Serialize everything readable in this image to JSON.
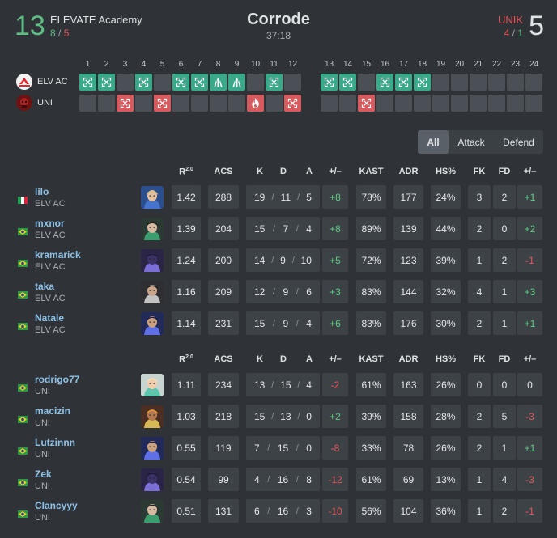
{
  "match": {
    "map": "Corrode",
    "duration": "37:18",
    "left": {
      "score": "13",
      "name": "ELEVATE Academy",
      "atk": "8",
      "def": "5",
      "abbr": "ELV AC"
    },
    "right": {
      "score": "5",
      "name": "UNIK",
      "atk": "4",
      "def": "1",
      "abbr": "UNI"
    }
  },
  "rounds": {
    "numbers": [
      "1",
      "2",
      "3",
      "4",
      "5",
      "6",
      "7",
      "8",
      "9",
      "10",
      "11",
      "12",
      "13",
      "14",
      "15",
      "16",
      "17",
      "18",
      "19",
      "20",
      "21",
      "22",
      "23",
      "24"
    ],
    "team1": [
      "elim",
      "elim",
      "",
      "elim",
      "",
      "elim",
      "elim",
      "defuse",
      "defuse",
      "",
      "elim",
      "",
      "elim",
      "elim",
      "",
      "elim",
      "elim",
      "elim",
      "",
      "",
      "",
      "",
      "",
      ""
    ],
    "team2": [
      "",
      "",
      "elim",
      "",
      "elim",
      "",
      "",
      "",
      "",
      "boom",
      "",
      "elim",
      "",
      "",
      "elim",
      "",
      "",
      "",
      "",
      "",
      "",
      "",
      "",
      ""
    ],
    "team1_color": "#3aa88b",
    "team2_color": "#d65a5e"
  },
  "filter": {
    "options": [
      "All",
      "Attack",
      "Defend"
    ],
    "active": "All"
  },
  "columns": {
    "rating": "R",
    "rating_sup": "2.0",
    "acs": "ACS",
    "k": "K",
    "d": "D",
    "a": "A",
    "pm": "+/–",
    "kast": "KAST",
    "adr": "ADR",
    "hs": "HS%",
    "fk": "FK",
    "fd": "FD",
    "fpm": "+/–"
  },
  "tables": [
    {
      "players": [
        {
          "name": "lilo",
          "team": "ELV AC",
          "flag": "it",
          "agent": "sova",
          "rating": "1.42",
          "acs": "288",
          "k": "19",
          "d": "11",
          "a": "5",
          "pm": "+8",
          "kast": "78%",
          "adr": "177",
          "hs": "24%",
          "fk": "3",
          "fd": "2",
          "fpm": "+1"
        },
        {
          "name": "mxnor",
          "team": "ELV AC",
          "flag": "br",
          "agent": "viper",
          "rating": "1.39",
          "acs": "204",
          "k": "15",
          "d": "7",
          "a": "4",
          "pm": "+8",
          "kast": "89%",
          "adr": "139",
          "hs": "44%",
          "fk": "2",
          "fd": "0",
          "fpm": "+2"
        },
        {
          "name": "kramarick",
          "team": "ELV AC",
          "flag": "br",
          "agent": "omen",
          "rating": "1.24",
          "acs": "200",
          "k": "14",
          "d": "9",
          "a": "10",
          "pm": "+5",
          "kast": "72%",
          "adr": "123",
          "hs": "39%",
          "fk": "1",
          "fd": "2",
          "fpm": "-1"
        },
        {
          "name": "taka",
          "team": "ELV AC",
          "flag": "br",
          "agent": "cypher",
          "rating": "1.16",
          "acs": "209",
          "k": "12",
          "d": "9",
          "a": "6",
          "pm": "+3",
          "kast": "83%",
          "adr": "144",
          "hs": "32%",
          "fk": "4",
          "fd": "1",
          "fpm": "+3"
        },
        {
          "name": "Natale",
          "team": "ELV AC",
          "flag": "br",
          "agent": "yoru",
          "rating": "1.14",
          "acs": "231",
          "k": "15",
          "d": "9",
          "a": "4",
          "pm": "+6",
          "kast": "83%",
          "adr": "176",
          "hs": "30%",
          "fk": "2",
          "fd": "1",
          "fpm": "+1"
        }
      ]
    },
    {
      "players": [
        {
          "name": "rodrigo77",
          "team": "UNI",
          "flag": "br",
          "agent": "sage",
          "rating": "1.11",
          "acs": "234",
          "k": "13",
          "d": "15",
          "a": "4",
          "pm": "-2",
          "kast": "61%",
          "adr": "163",
          "hs": "26%",
          "fk": "0",
          "fd": "0",
          "fpm": "0"
        },
        {
          "name": "macizin",
          "team": "UNI",
          "flag": "br",
          "agent": "phoenix",
          "rating": "1.03",
          "acs": "218",
          "k": "15",
          "d": "13",
          "a": "0",
          "pm": "+2",
          "kast": "39%",
          "adr": "158",
          "hs": "28%",
          "fk": "2",
          "fd": "5",
          "fpm": "-3"
        },
        {
          "name": "Lutzinnn",
          "team": "UNI",
          "flag": "br",
          "agent": "yoru",
          "rating": "0.55",
          "acs": "119",
          "k": "7",
          "d": "15",
          "a": "0",
          "pm": "-8",
          "kast": "33%",
          "adr": "78",
          "hs": "26%",
          "fk": "2",
          "fd": "1",
          "fpm": "+1"
        },
        {
          "name": "Zek",
          "team": "UNI",
          "flag": "br",
          "agent": "omen",
          "rating": "0.54",
          "acs": "99",
          "k": "4",
          "d": "16",
          "a": "8",
          "pm": "-12",
          "kast": "61%",
          "adr": "69",
          "hs": "13%",
          "fk": "1",
          "fd": "4",
          "fpm": "-3"
        },
        {
          "name": "Clancyyy",
          "team": "UNI",
          "flag": "br",
          "agent": "viper",
          "rating": "0.51",
          "acs": "131",
          "k": "6",
          "d": "16",
          "a": "3",
          "pm": "-10",
          "kast": "56%",
          "adr": "104",
          "hs": "36%",
          "fk": "1",
          "fd": "2",
          "fpm": "-1"
        }
      ]
    }
  ]
}
